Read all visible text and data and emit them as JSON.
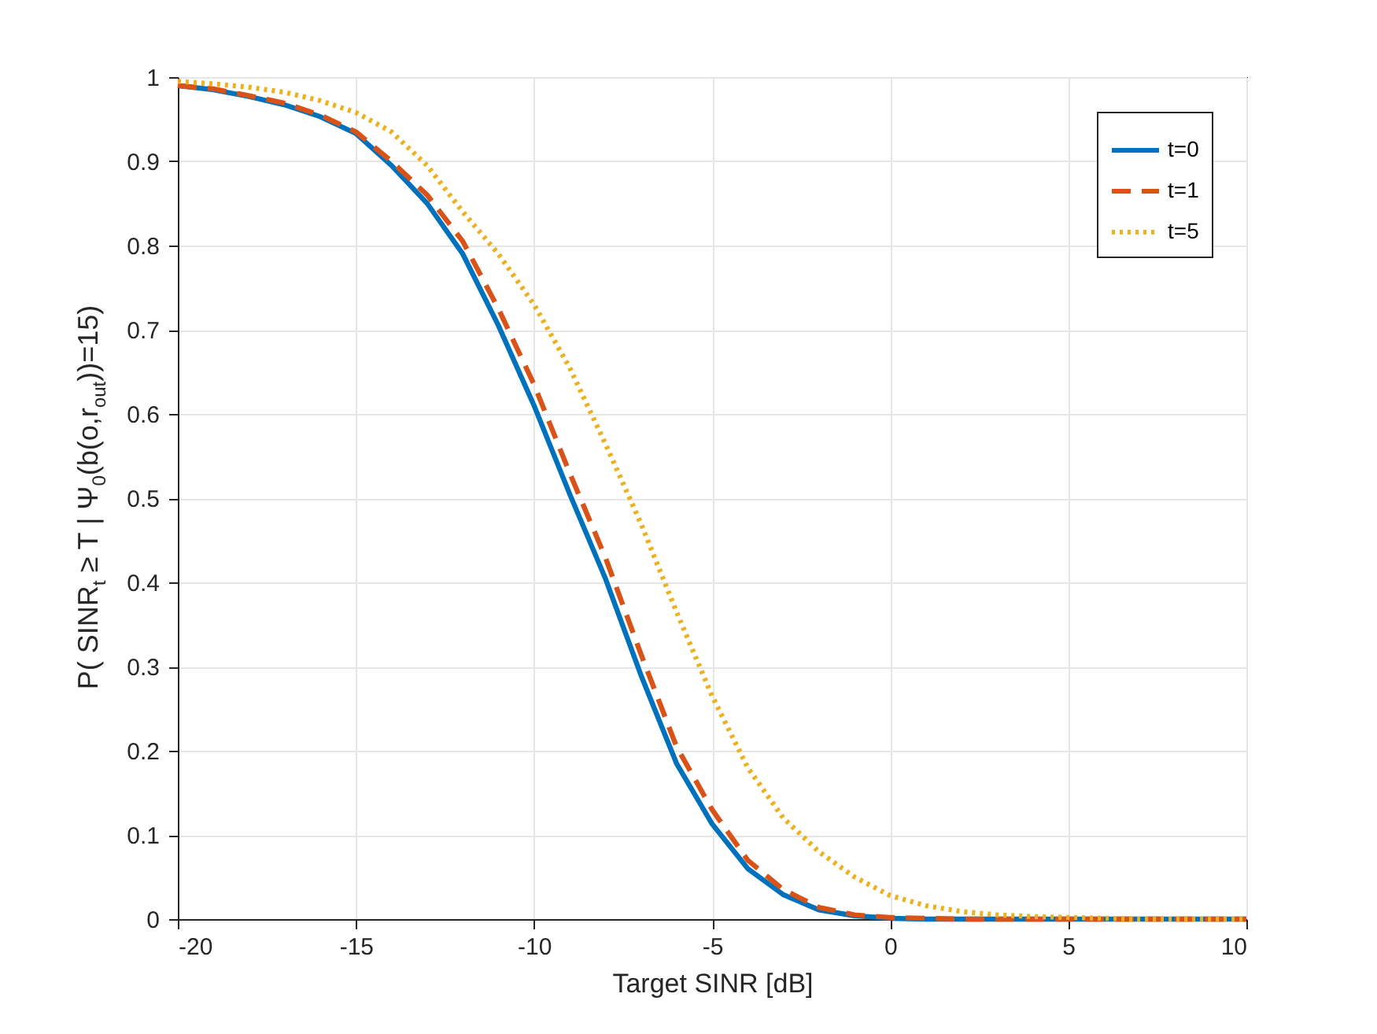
{
  "chart_data": {
    "type": "line",
    "xlabel": "Target SINR [dB]",
    "ylabel": "P( SINR$_{t}$ ≥  T | Ψ$_{0}$(b(o,r$_{out}$))=15)",
    "x": [
      -20,
      -19,
      -18,
      -17,
      -16,
      -15,
      -14,
      -13,
      -12,
      -11,
      -10,
      -9,
      -8,
      -7,
      -6,
      -5,
      -4,
      -3,
      -2,
      -1,
      0,
      1,
      2,
      3,
      4,
      5,
      6,
      7,
      8,
      9,
      10
    ],
    "series": [
      {
        "name": "t=0",
        "color": "#0072bd",
        "line_style": "solid",
        "values": [
          0.99,
          0.985,
          0.977,
          0.967,
          0.953,
          0.933,
          0.895,
          0.85,
          0.79,
          0.705,
          0.61,
          0.505,
          0.405,
          0.29,
          0.185,
          0.113,
          0.06,
          0.029,
          0.011,
          0.004,
          0.001,
          0,
          0,
          0,
          0,
          0,
          0,
          0,
          0,
          0,
          0
        ]
      },
      {
        "name": "t=1",
        "color": "#d95319",
        "line_style": "dashed",
        "values": [
          0.99,
          0.986,
          0.978,
          0.969,
          0.955,
          0.935,
          0.9,
          0.86,
          0.805,
          0.725,
          0.635,
          0.53,
          0.43,
          0.315,
          0.205,
          0.13,
          0.07,
          0.035,
          0.014,
          0.005,
          0.002,
          0.001,
          0,
          0,
          0,
          0,
          0,
          0,
          0,
          0,
          0
        ]
      },
      {
        "name": "t=5",
        "color": "#edb120",
        "line_style": "dotted",
        "values": [
          0.995,
          0.992,
          0.988,
          0.982,
          0.972,
          0.958,
          0.935,
          0.895,
          0.84,
          0.79,
          0.73,
          0.655,
          0.565,
          0.47,
          0.365,
          0.265,
          0.18,
          0.12,
          0.08,
          0.05,
          0.028,
          0.016,
          0.009,
          0.005,
          0.003,
          0.002,
          0.001,
          0,
          0,
          0,
          0
        ]
      }
    ],
    "xlim": [
      -20,
      10
    ],
    "xticks": [
      -20,
      -15,
      -10,
      -5,
      0,
      5,
      10
    ],
    "ylim": [
      0,
      1
    ],
    "yticks": [
      0,
      0.1,
      0.2,
      0.3,
      0.4,
      0.5,
      0.6,
      0.7,
      0.8,
      0.9,
      1
    ],
    "grid": true,
    "legend": "top right"
  }
}
